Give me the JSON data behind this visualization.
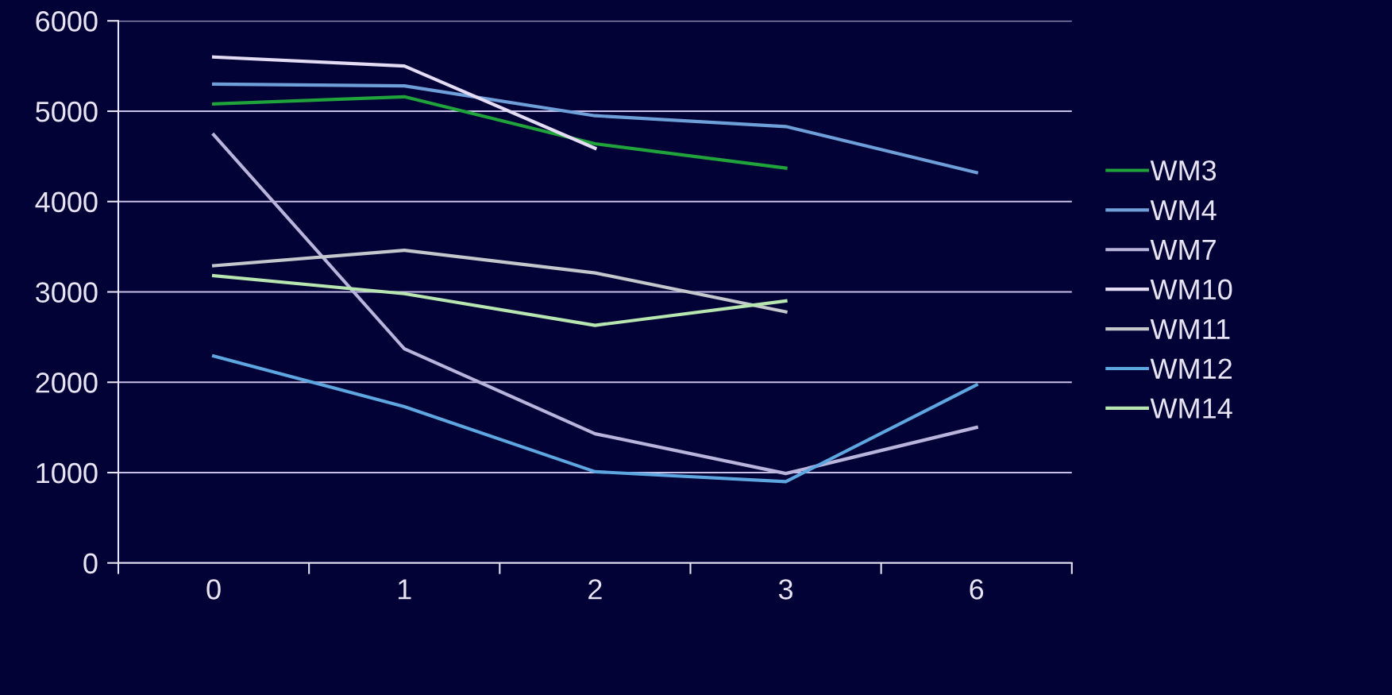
{
  "chart_data": {
    "type": "line",
    "categories": [
      "0",
      "1",
      "2",
      "3",
      "6"
    ],
    "series": [
      {
        "name": "WM3",
        "color": "#1fa33a",
        "values": [
          5080,
          5160,
          4640,
          4370,
          null
        ]
      },
      {
        "name": "WM4",
        "color": "#6f9fd8",
        "values": [
          5300,
          5280,
          4950,
          4830,
          4320
        ]
      },
      {
        "name": "WM7",
        "color": "#b8b4dc",
        "values": [
          4740,
          2370,
          1430,
          990,
          1500
        ]
      },
      {
        "name": "WM10",
        "color": "#e4dcf4",
        "values": [
          5600,
          5500,
          4590,
          null,
          null
        ]
      },
      {
        "name": "WM11",
        "color": "#c4c8cc",
        "values": [
          3290,
          3460,
          3210,
          2780,
          null
        ]
      },
      {
        "name": "WM12",
        "color": "#5ea6e0",
        "values": [
          2290,
          1730,
          1010,
          900,
          1970
        ]
      },
      {
        "name": "WM14",
        "color": "#b8e6b0",
        "values": [
          3180,
          2980,
          2630,
          2900,
          null
        ]
      }
    ],
    "ylim": [
      0,
      6000
    ],
    "yticks": [
      0,
      1000,
      2000,
      3000,
      4000,
      5000,
      6000
    ],
    "grid": "y",
    "legend": "right",
    "marker": "none",
    "line_style": "solid"
  }
}
